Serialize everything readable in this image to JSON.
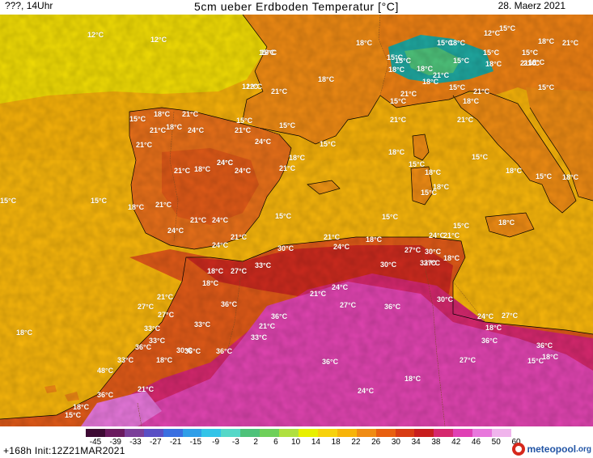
{
  "header": {
    "left": "???, 14Uhr",
    "title": "5cm ueber Erdboden Temperatur [°C]",
    "date": "28. Maerz 2021"
  },
  "colorbar": {
    "ticks": [
      "-45",
      "-39",
      "-33",
      "-27",
      "-21",
      "-15",
      "-9",
      "-3",
      "2",
      "6",
      "10",
      "14",
      "18",
      "22",
      "26",
      "30",
      "34",
      "38",
      "42",
      "46",
      "50",
      "60"
    ],
    "colors": [
      "#3d0a33",
      "#6a1a5e",
      "#7b3f99",
      "#5a4fc4",
      "#3a6fe0",
      "#2f9ee8",
      "#33c4e8",
      "#55d8c8",
      "#4ec27a",
      "#6fd05a",
      "#b0e040",
      "#e8f000",
      "#f7d20c",
      "#f7b40a",
      "#f08c14",
      "#e86010",
      "#d83c14",
      "#c81e1e",
      "#d6286e",
      "#e040b4",
      "#e878dc",
      "#f0b4ec"
    ]
  },
  "footer": {
    "run": "+168h  Init:12Z21MAR2021"
  },
  "brand": {
    "name": "meteopool",
    "domain": ".org"
  },
  "labels": [
    {
      "t": "12°C"
    },
    {
      "t": "12°C"
    },
    {
      "t": "18°C"
    },
    {
      "t": "18°C"
    },
    {
      "t": "12°C"
    },
    {
      "t": "21°C"
    },
    {
      "t": "18°C"
    },
    {
      "t": "15°C"
    },
    {
      "t": "21°C"
    },
    {
      "t": "18°C"
    },
    {
      "t": "15°C"
    },
    {
      "t": "21°C"
    },
    {
      "t": "21°C"
    },
    {
      "t": "24°C"
    },
    {
      "t": "21°C"
    },
    {
      "t": "24°C"
    },
    {
      "t": "24°C"
    },
    {
      "t": "15°C"
    },
    {
      "t": "15°C"
    },
    {
      "t": "18°C"
    },
    {
      "t": "21°C"
    },
    {
      "t": "18°C"
    },
    {
      "t": "24°C"
    },
    {
      "t": "24°C"
    },
    {
      "t": "21°C"
    },
    {
      "t": "21°C"
    },
    {
      "t": "15°C"
    },
    {
      "t": "15°C"
    },
    {
      "t": "18°C"
    },
    {
      "t": "21°C"
    },
    {
      "t": "24°C"
    },
    {
      "t": "24°C"
    },
    {
      "t": "15°C"
    },
    {
      "t": "24°C"
    },
    {
      "t": "21°C"
    },
    {
      "t": "18°C"
    },
    {
      "t": "15°C"
    },
    {
      "t": "18°C"
    },
    {
      "t": "12°C"
    },
    {
      "t": "15°C"
    },
    {
      "t": "18°C"
    },
    {
      "t": "15°C"
    },
    {
      "t": "18°C"
    },
    {
      "t": "18°C"
    },
    {
      "t": "15°C"
    },
    {
      "t": "21°C"
    },
    {
      "t": "18°C"
    },
    {
      "t": "12°C"
    },
    {
      "t": "15°C"
    },
    {
      "t": "15°C"
    },
    {
      "t": "15°C"
    },
    {
      "t": "21°C"
    },
    {
      "t": "18°C"
    },
    {
      "t": "21°C"
    },
    {
      "t": "15°C"
    },
    {
      "t": "18°C"
    },
    {
      "t": "21°C"
    },
    {
      "t": "15°C"
    },
    {
      "t": "15°C"
    },
    {
      "t": "21°C"
    },
    {
      "t": "18°C"
    },
    {
      "t": "21°C"
    },
    {
      "t": "15°C"
    },
    {
      "t": "18°C"
    },
    {
      "t": "15°C"
    },
    {
      "t": "15°C"
    },
    {
      "t": "18°C"
    },
    {
      "t": "15°C"
    },
    {
      "t": "18°C"
    },
    {
      "t": "15°C"
    },
    {
      "t": "18°C"
    },
    {
      "t": "15°C"
    },
    {
      "t": "21°C"
    },
    {
      "t": "18°C"
    },
    {
      "t": "21°C"
    },
    {
      "t": "18°C"
    },
    {
      "t": "15°C"
    },
    {
      "t": "24°C"
    },
    {
      "t": "21°C"
    },
    {
      "t": "21°C"
    },
    {
      "t": "24°C"
    },
    {
      "t": "18°C"
    },
    {
      "t": "30°C"
    },
    {
      "t": "27°C"
    },
    {
      "t": "30°C"
    },
    {
      "t": "27°C"
    },
    {
      "t": "33°C"
    },
    {
      "t": "18°C"
    },
    {
      "t": "30°C"
    },
    {
      "t": "33°C"
    },
    {
      "t": "24°C"
    },
    {
      "t": "21°C"
    },
    {
      "t": "18°C"
    },
    {
      "t": "27°C"
    },
    {
      "t": "18°C"
    },
    {
      "t": "21°C"
    },
    {
      "t": "27°C"
    },
    {
      "t": "27°C"
    },
    {
      "t": "36°C"
    },
    {
      "t": "36°C"
    },
    {
      "t": "27°C"
    },
    {
      "t": "36°C"
    },
    {
      "t": "30°C"
    },
    {
      "t": "24°C"
    },
    {
      "t": "33°C"
    },
    {
      "t": "33°C"
    },
    {
      "t": "21°C"
    },
    {
      "t": "33°C"
    },
    {
      "t": "27°C"
    },
    {
      "t": "33°C"
    },
    {
      "t": "30°C"
    },
    {
      "t": "36°C"
    },
    {
      "t": "36°C"
    },
    {
      "t": "18°C"
    },
    {
      "t": "36°C"
    },
    {
      "t": "33°C"
    },
    {
      "t": "18°C"
    },
    {
      "t": "36°C"
    },
    {
      "t": "36°C"
    },
    {
      "t": "36°C"
    },
    {
      "t": "18°C"
    },
    {
      "t": "24°C"
    },
    {
      "t": "48°C"
    },
    {
      "t": "36°C"
    },
    {
      "t": "21°C"
    },
    {
      "t": "27°C"
    },
    {
      "t": "18°C"
    },
    {
      "t": "15°C"
    },
    {
      "t": "15°C"
    },
    {
      "t": "18°C"
    },
    {
      "t": "18°C"
    }
  ]
}
